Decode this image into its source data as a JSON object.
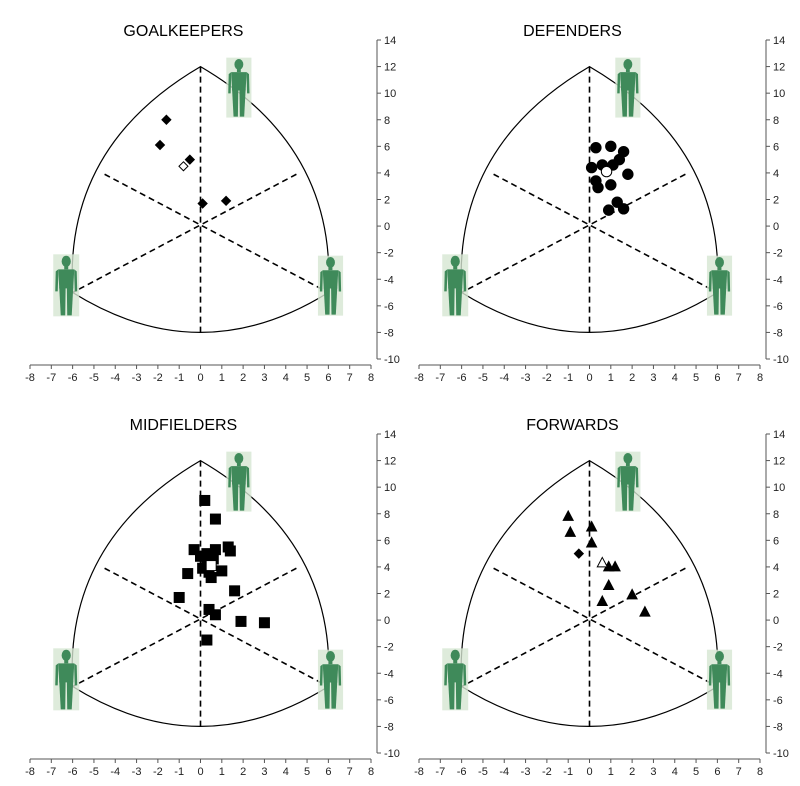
{
  "chart_data": [
    {
      "type": "scatter",
      "title": "GOALKEEPERS",
      "xlim": [
        -8,
        8
      ],
      "ylim": [
        -10,
        14
      ],
      "xticks": [
        -8,
        -7,
        -6,
        -5,
        -4,
        -3,
        -2,
        -1,
        0,
        1,
        2,
        3,
        4,
        5,
        6,
        7,
        8
      ],
      "yticks": [
        14,
        12,
        10,
        8,
        6,
        4,
        2,
        0,
        -2,
        -4,
        -6,
        -8,
        -10
      ],
      "marker": "diamond",
      "points": [
        [
          -1.6,
          8.0
        ],
        [
          -1.9,
          6.1
        ],
        [
          -0.5,
          5.0
        ],
        [
          0.1,
          1.7
        ],
        [
          1.2,
          1.9
        ]
      ],
      "mean": [
        -0.8,
        4.5
      ]
    },
    {
      "type": "scatter",
      "title": "DEFENDERS",
      "xlim": [
        -8,
        8
      ],
      "ylim": [
        -10,
        14
      ],
      "xticks": [
        -8,
        -7,
        -6,
        -5,
        -4,
        -3,
        -2,
        -1,
        0,
        1,
        2,
        3,
        4,
        5,
        6,
        7,
        8
      ],
      "yticks": [
        14,
        12,
        10,
        8,
        6,
        4,
        2,
        0,
        -2,
        -4,
        -6,
        -8,
        -10
      ],
      "marker": "circle",
      "points": [
        [
          0.3,
          5.9
        ],
        [
          1.0,
          6.0
        ],
        [
          1.6,
          5.6
        ],
        [
          0.1,
          4.4
        ],
        [
          0.6,
          4.6
        ],
        [
          1.1,
          4.6
        ],
        [
          1.4,
          5.0
        ],
        [
          1.8,
          3.9
        ],
        [
          0.3,
          3.4
        ],
        [
          0.4,
          2.9
        ],
        [
          1.0,
          3.1
        ],
        [
          1.3,
          1.8
        ],
        [
          0.9,
          1.2
        ],
        [
          1.6,
          1.3
        ]
      ],
      "mean": [
        0.8,
        4.1
      ]
    },
    {
      "type": "scatter",
      "title": "MIDFIELDERS",
      "xlim": [
        -8,
        8
      ],
      "ylim": [
        -10,
        14
      ],
      "xticks": [
        -8,
        -7,
        -6,
        -5,
        -4,
        -3,
        -2,
        -1,
        0,
        1,
        2,
        3,
        4,
        5,
        6,
        7,
        8
      ],
      "yticks": [
        14,
        12,
        10,
        8,
        6,
        4,
        2,
        0,
        -2,
        -4,
        -6,
        -8,
        -10
      ],
      "marker": "square",
      "points": [
        [
          0.2,
          9.0
        ],
        [
          0.7,
          7.6
        ],
        [
          -0.3,
          5.3
        ],
        [
          0.3,
          5.0
        ],
        [
          0.7,
          5.3
        ],
        [
          1.3,
          5.5
        ],
        [
          1.4,
          5.2
        ],
        [
          0.0,
          4.8
        ],
        [
          0.3,
          4.4
        ],
        [
          0.6,
          4.6
        ],
        [
          0.1,
          3.9
        ],
        [
          0.4,
          3.6
        ],
        [
          -0.6,
          3.5
        ],
        [
          1.0,
          3.7
        ],
        [
          0.5,
          3.2
        ],
        [
          -1.0,
          1.7
        ],
        [
          1.6,
          2.2
        ],
        [
          0.4,
          0.8
        ],
        [
          0.7,
          0.4
        ],
        [
          1.9,
          -0.1
        ],
        [
          3.0,
          -0.2
        ],
        [
          0.3,
          -1.5
        ]
      ],
      "mean": [
        0.5,
        4.1
      ]
    },
    {
      "type": "scatter",
      "title": "FORWARDS",
      "xlim": [
        -8,
        8
      ],
      "ylim": [
        -10,
        14
      ],
      "xticks": [
        -8,
        -7,
        -6,
        -5,
        -4,
        -3,
        -2,
        -1,
        0,
        1,
        2,
        3,
        4,
        5,
        6,
        7,
        8
      ],
      "yticks": [
        14,
        12,
        10,
        8,
        6,
        4,
        2,
        0,
        -2,
        -4,
        -6,
        -8,
        -10
      ],
      "marker": "triangle",
      "extra_marker": "diamond",
      "extra_points": [
        [
          -0.5,
          5.0
        ]
      ],
      "points": [
        [
          -1.0,
          7.8
        ],
        [
          -0.9,
          6.6
        ],
        [
          0.1,
          7.0
        ],
        [
          0.1,
          5.8
        ],
        [
          0.9,
          4.0
        ],
        [
          1.2,
          4.0
        ],
        [
          0.9,
          2.6
        ],
        [
          0.6,
          1.4
        ],
        [
          2.0,
          1.9
        ],
        [
          2.6,
          0.6
        ]
      ],
      "mean": [
        0.6,
        4.3
      ]
    }
  ]
}
